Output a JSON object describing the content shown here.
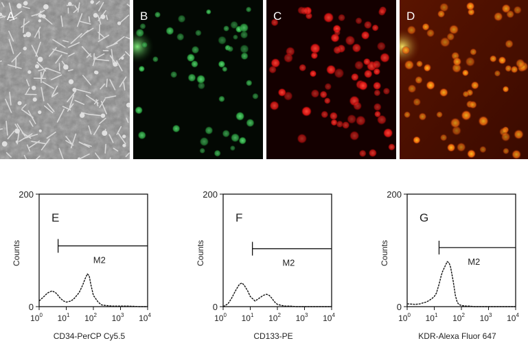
{
  "panels": {
    "A": {
      "label": "A",
      "kind": "phase-contrast micrograph",
      "palette": [
        "#6b6b6b",
        "#d8d8d8"
      ]
    },
    "B": {
      "label": "B",
      "kind": "green fluorescence micrograph",
      "palette": [
        "#020703",
        "#2fbf4a"
      ]
    },
    "C": {
      "label": "C",
      "kind": "red fluorescence micrograph",
      "palette": [
        "#120000",
        "#e8161a"
      ]
    },
    "D": {
      "label": "D",
      "kind": "merged fluorescence micrograph",
      "palette": [
        "#4a0c00",
        "#f2a010"
      ]
    }
  },
  "chart_data": [
    {
      "type": "line",
      "panel_label": "E",
      "xlabel": "CD34-PerCP Cy5.5",
      "ylabel": "Counts",
      "x_scale": "log",
      "xlim": [
        1,
        10000
      ],
      "ylim": [
        0,
        200
      ],
      "y_ticks": [
        "0",
        "200"
      ],
      "x_ticks": [
        {
          "base": "10",
          "exp": "0"
        },
        {
          "base": "10",
          "exp": "1"
        },
        {
          "base": "10",
          "exp": "2"
        },
        {
          "base": "10",
          "exp": "3"
        },
        {
          "base": "10",
          "exp": "4"
        }
      ],
      "gate": {
        "label": "M2",
        "start": 5,
        "end": 10000,
        "y": 108
      },
      "series": [
        {
          "x": [
            1,
            1.5,
            2,
            3,
            4,
            5,
            6,
            8,
            10,
            15,
            20,
            30,
            40,
            50,
            60,
            70,
            80,
            100,
            150,
            200,
            300,
            500,
            1000,
            2000,
            5000,
            10000
          ],
          "y": [
            10,
            18,
            24,
            28,
            25,
            20,
            15,
            10,
            8,
            10,
            15,
            25,
            38,
            50,
            58,
            55,
            40,
            20,
            8,
            3,
            2,
            1,
            1,
            1,
            0,
            0
          ]
        }
      ]
    },
    {
      "type": "line",
      "panel_label": "F",
      "xlabel": "CD133-PE",
      "ylabel": "Counts",
      "x_scale": "log",
      "xlim": [
        1,
        10000
      ],
      "ylim": [
        0,
        200
      ],
      "y_ticks": [
        "0",
        "200"
      ],
      "x_ticks": [
        {
          "base": "10",
          "exp": "0"
        },
        {
          "base": "10",
          "exp": "1"
        },
        {
          "base": "10",
          "exp": "2"
        },
        {
          "base": "10",
          "exp": "3"
        },
        {
          "base": "10",
          "exp": "4"
        }
      ],
      "gate": {
        "label": "M2",
        "start": 12,
        "end": 10000,
        "y": 103
      },
      "series": [
        {
          "x": [
            1,
            1.5,
            2,
            3,
            4,
            5,
            6,
            8,
            10,
            15,
            20,
            30,
            40,
            50,
            60,
            80,
            100,
            150,
            200,
            300,
            500,
            1000,
            2000,
            5000,
            10000
          ],
          "y": [
            0,
            5,
            14,
            30,
            40,
            42,
            38,
            28,
            18,
            10,
            14,
            20,
            22,
            20,
            16,
            8,
            4,
            2,
            1,
            1,
            0,
            0,
            0,
            0,
            0
          ]
        }
      ]
    },
    {
      "type": "line",
      "panel_label": "G",
      "xlabel": "KDR-Alexa Fluor 647",
      "ylabel": "Counts",
      "x_scale": "log",
      "xlim": [
        1,
        10000
      ],
      "ylim": [
        0,
        200
      ],
      "y_ticks": [
        "0",
        "200"
      ],
      "x_ticks": [
        {
          "base": "10",
          "exp": "0"
        },
        {
          "base": "10",
          "exp": "1"
        },
        {
          "base": "10",
          "exp": "2"
        },
        {
          "base": "10",
          "exp": "3"
        },
        {
          "base": "10",
          "exp": "4"
        }
      ],
      "gate": {
        "label": "M2",
        "start": 15,
        "end": 10000,
        "y": 105
      },
      "series": [
        {
          "x": [
            1,
            2,
            3,
            4,
            5,
            6,
            8,
            10,
            12,
            15,
            18,
            20,
            25,
            30,
            35,
            40,
            50,
            60,
            70,
            80,
            100,
            150,
            200,
            300,
            500,
            1000,
            2000,
            5000,
            10000
          ],
          "y": [
            5,
            4,
            5,
            7,
            8,
            10,
            14,
            18,
            24,
            40,
            55,
            62,
            72,
            80,
            78,
            70,
            45,
            20,
            8,
            4,
            2,
            1,
            1,
            0,
            0,
            0,
            0,
            0,
            0
          ]
        }
      ]
    }
  ]
}
